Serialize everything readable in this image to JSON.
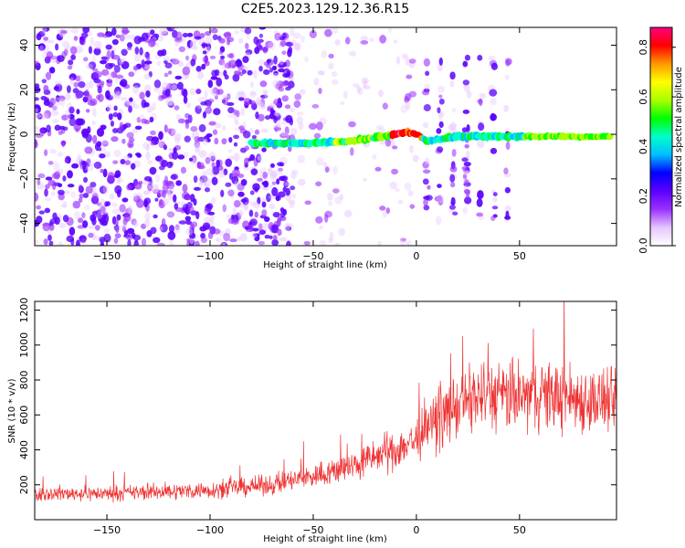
{
  "figure": {
    "title": "C2E5.2023.129.12.36.R15"
  },
  "colors": {
    "spectrogram_cmap": [
      "#ffffff",
      "#e6c6ff",
      "#9b30ff",
      "#5a00ff",
      "#0000ff",
      "#00bfff",
      "#00ffc8",
      "#00ff00",
      "#aaff00",
      "#ffff00",
      "#ff9900",
      "#ff0000",
      "#ff0080"
    ],
    "snr_line": "#ee3333"
  },
  "chart_data": [
    {
      "type": "heatmap",
      "name": "spectrogram",
      "xlabel": "Height of straight line (km)",
      "ylabel": "Frequency (Hz)",
      "xlim": [
        -185,
        97
      ],
      "ylim": [
        -50,
        48
      ],
      "xticks": [
        -150,
        -100,
        -50,
        0,
        50
      ],
      "yticks": [
        -40,
        -20,
        0,
        20,
        40
      ],
      "colorbar": {
        "label": "Normalized spectral amplitude",
        "range": [
          0,
          0.88
        ],
        "ticks": [
          0.0,
          0.2,
          0.4,
          0.6,
          0.8
        ]
      },
      "features": [
        {
          "description": "dense broadband speckle (noise)",
          "x_range": [
            -185,
            -60
          ],
          "y_range": [
            -50,
            48
          ]
        },
        {
          "description": "sparse speckle",
          "x_range": [
            -60,
            0
          ],
          "y_range": [
            -50,
            48
          ]
        },
        {
          "description": "wideband speckle columns",
          "x_range": [
            2,
            52
          ],
          "y_range": [
            -40,
            35
          ]
        },
        {
          "description": "narrow signal trace",
          "points": [
            [
              -80,
              -4
            ],
            [
              -50,
              -4
            ],
            [
              -30,
              -3
            ],
            [
              -10,
              0
            ],
            [
              -5,
              1
            ],
            [
              0,
              0
            ],
            [
              5,
              -3
            ],
            [
              20,
              -1
            ],
            [
              52,
              -1
            ],
            [
              95,
              -1
            ]
          ]
        }
      ]
    },
    {
      "type": "line",
      "name": "snr",
      "xlabel": "Height of straight line (km)",
      "ylabel": "SNR (10 * v/v)",
      "xlim": [
        -185,
        97
      ],
      "ylim": [
        0,
        1250
      ],
      "xticks": [
        -150,
        -100,
        -50,
        0,
        50
      ],
      "yticks": [
        200,
        400,
        600,
        800,
        1000,
        1200
      ],
      "series": [
        {
          "x": [
            -185,
            -150,
            -100,
            -70,
            -50,
            -30,
            -20,
            -10,
            0,
            10,
            20,
            30,
            50,
            60,
            75,
            90,
            97
          ],
          "y": [
            150,
            150,
            170,
            200,
            250,
            310,
            360,
            400,
            460,
            570,
            650,
            710,
            700,
            720,
            700,
            680,
            660
          ]
        }
      ]
    }
  ]
}
